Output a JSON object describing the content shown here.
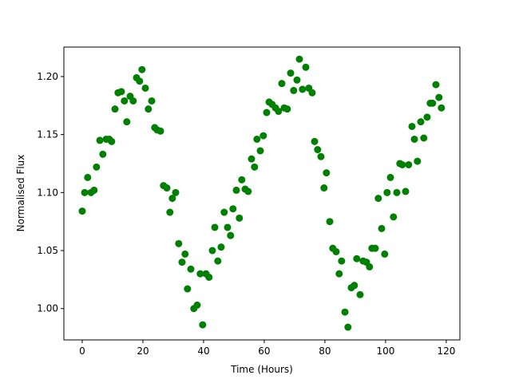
{
  "chart_data": {
    "type": "scatter",
    "x_label": "Time (Hours)",
    "y_label": "Normalised Flux",
    "color": "#008000",
    "x": [
      0,
      0.8,
      1.8,
      2.9,
      3.9,
      4.7,
      5.8,
      6.8,
      7.9,
      8.9,
      9.7,
      10.8,
      11.8,
      12.9,
      13.9,
      14.7,
      15.8,
      16.8,
      17.9,
      18.9,
      19.7,
      20.8,
      21.8,
      22.9,
      23.9,
      24.7,
      25.8,
      26.8,
      27.9,
      28.9,
      29.7,
      30.8,
      31.8,
      32.9,
      33.9,
      34.7,
      35.8,
      36.8,
      37.9,
      38.9,
      39.7,
      40.8,
      41.8,
      42.9,
      43.7,
      44.7,
      45.8,
      46.8,
      47.9,
      48.9,
      49.7,
      50.8,
      51.8,
      52.6,
      53.7,
      54.7,
      55.8,
      56.8,
      57.6,
      58.7,
      59.7,
      60.8,
      61.6,
      62.6,
      63.7,
      64.7,
      65.8,
      66.6,
      67.6,
      68.7,
      69.7,
      70.8,
      71.6,
      72.6,
      73.7,
      74.7,
      75.8,
      76.6,
      77.6,
      78.7,
      79.7,
      80.5,
      81.6,
      82.6,
      83.7,
      84.7,
      85.5,
      86.6,
      87.6,
      88.7,
      89.7,
      90.5,
      91.6,
      92.6,
      93.7,
      94.7,
      95.5,
      96.6,
      97.6,
      98.7,
      99.7,
      100.5,
      101.6,
      102.6,
      103.7,
      104.7,
      105.5,
      106.6,
      107.6,
      108.7,
      109.5,
      110.5,
      111.6,
      112.6,
      113.7,
      114.7,
      115.5,
      116.6,
      117.6,
      118.4
    ],
    "values": [
      1.084,
      1.1,
      1.113,
      1.1,
      1.102,
      1.122,
      1.145,
      1.133,
      1.146,
      1.146,
      1.144,
      1.172,
      1.186,
      1.187,
      1.179,
      1.161,
      1.183,
      1.179,
      1.199,
      1.196,
      1.206,
      1.19,
      1.172,
      1.179,
      1.156,
      1.154,
      1.153,
      1.106,
      1.104,
      1.083,
      1.095,
      1.1,
      1.056,
      1.04,
      1.047,
      1.017,
      1.034,
      1.0,
      1.003,
      1.03,
      0.986,
      1.03,
      1.027,
      1.05,
      1.07,
      1.041,
      1.053,
      1.083,
      1.07,
      1.063,
      1.086,
      1.102,
      1.078,
      1.111,
      1.103,
      1.101,
      1.129,
      1.122,
      1.146,
      1.136,
      1.149,
      1.169,
      1.178,
      1.176,
      1.173,
      1.17,
      1.194,
      1.173,
      1.172,
      1.203,
      1.188,
      1.197,
      1.215,
      1.189,
      1.208,
      1.19,
      1.186,
      1.144,
      1.137,
      1.131,
      1.104,
      1.117,
      1.075,
      1.052,
      1.049,
      1.03,
      1.041,
      0.997,
      0.984,
      1.018,
      1.02,
      1.043,
      1.012,
      1.041,
      1.04,
      1.036,
      1.052,
      1.052,
      1.095,
      1.069,
      1.047,
      1.1,
      1.113,
      1.079,
      1.1,
      1.125,
      1.124,
      1.101,
      1.124,
      1.157,
      1.146,
      1.127,
      1.161,
      1.147,
      1.165,
      1.177,
      1.177,
      1.193,
      1.182,
      1.173
    ],
    "xlim": [
      -6.05,
      124.5
    ],
    "ylim": [
      0.973,
      1.2254
    ],
    "xticks": [
      0,
      20,
      40,
      60,
      80,
      100,
      120
    ],
    "yticks": [
      {
        "value": 1.0,
        "label": "1.00"
      },
      {
        "value": 1.05,
        "label": "1.05"
      },
      {
        "value": 1.1,
        "label": "1.10"
      },
      {
        "value": 1.15,
        "label": "1.15"
      },
      {
        "value": 1.2,
        "label": "1.20"
      }
    ]
  }
}
